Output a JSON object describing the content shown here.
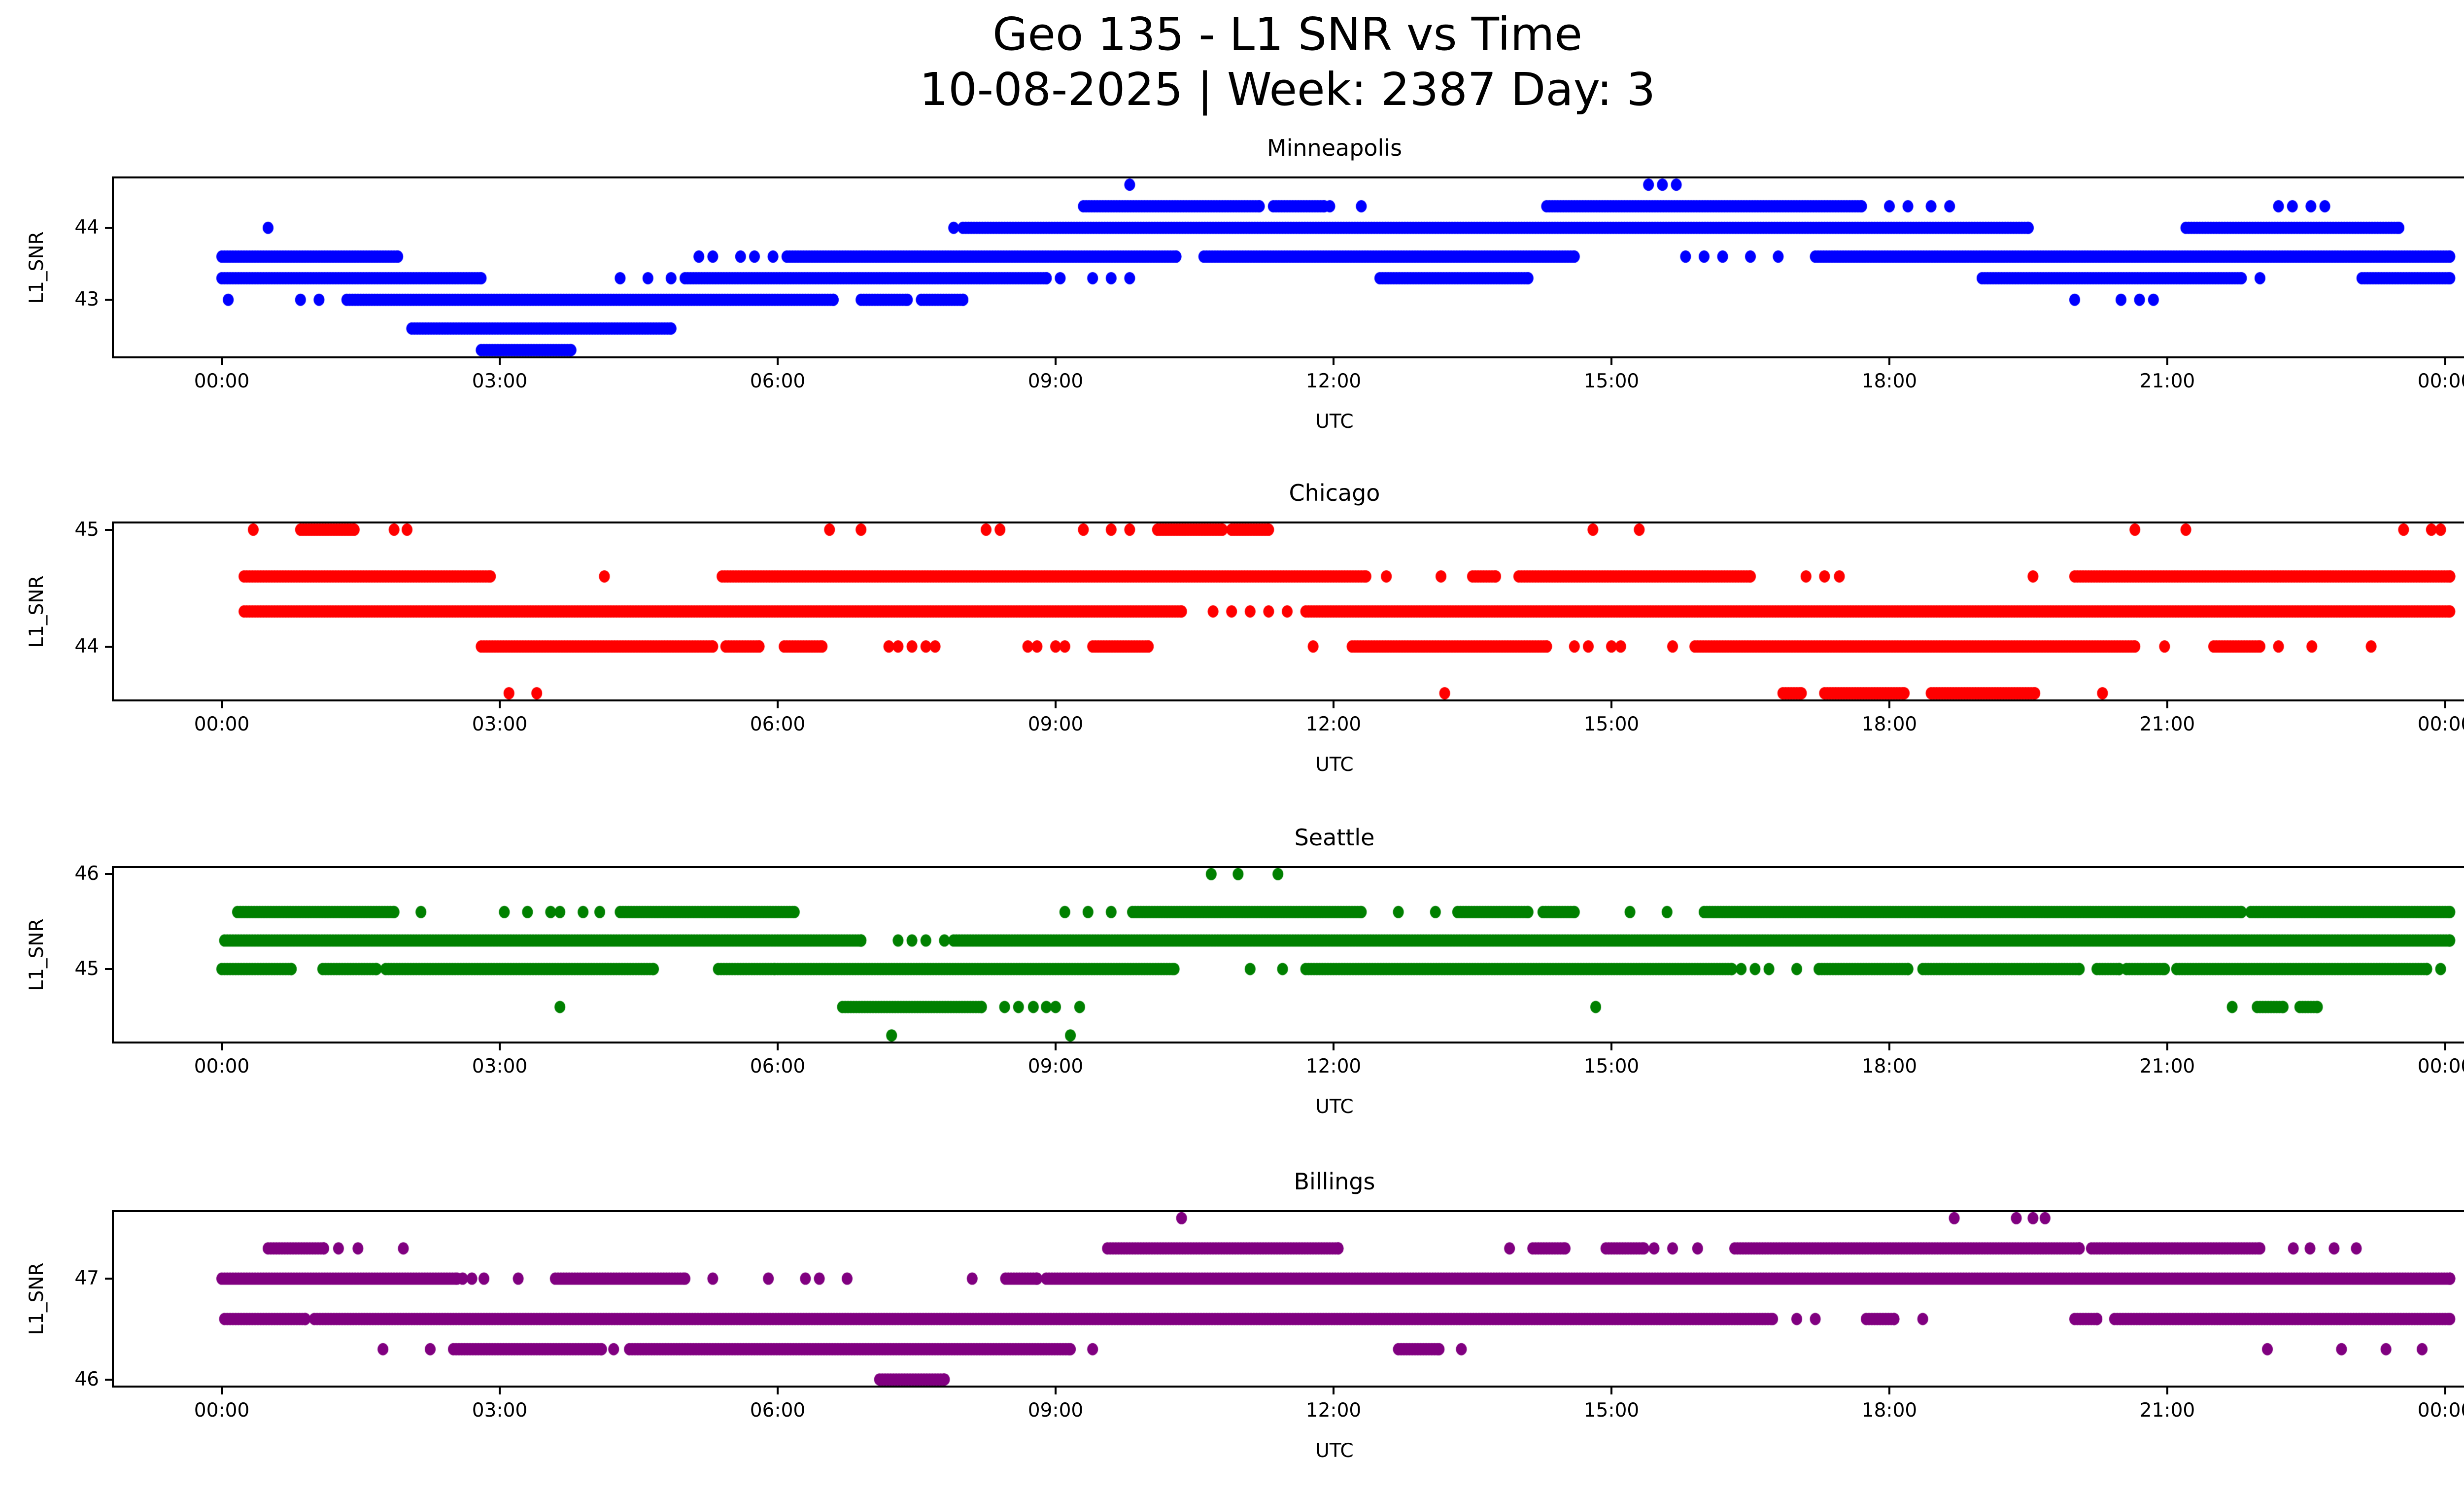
{
  "figure": {
    "title_line1": "Geo 135 - L1 SNR vs Time",
    "title_line2": "10-08-2025 | Week: 2387 Day: 3"
  },
  "xticks": [
    {
      "hour": 0,
      "label": "00:00"
    },
    {
      "hour": 3,
      "label": "03:00"
    },
    {
      "hour": 6,
      "label": "06:00"
    },
    {
      "hour": 9,
      "label": "09:00"
    },
    {
      "hour": 12,
      "label": "12:00"
    },
    {
      "hour": 15,
      "label": "15:00"
    },
    {
      "hour": 18,
      "label": "18:00"
    },
    {
      "hour": 21,
      "label": "21:00"
    },
    {
      "hour": 24,
      "label": "00:00"
    }
  ],
  "chart_data": [
    {
      "type": "scatter",
      "title": "Minneapolis",
      "xlabel": "UTC",
      "ylabel": "L1_SNR",
      "color": "#0000ff",
      "ylim": [
        42.185,
        44.715
      ],
      "yticks": [
        43,
        44
      ],
      "xlim_hours": [
        -1.19,
        25.21
      ],
      "series": [
        {
          "snr": 44.6,
          "segments": [],
          "dots": [
            9.8,
            15.4,
            15.55,
            15.7
          ]
        },
        {
          "snr": 44.3,
          "segments": [
            [
              9.3,
              11.2
            ],
            [
              11.35,
              11.9
            ],
            [
              14.3,
              17.7
            ]
          ],
          "dots": [
            11.96,
            12.3,
            18.0,
            18.2,
            18.45,
            18.65,
            22.2,
            22.35,
            22.55,
            22.7
          ]
        },
        {
          "snr": 44.0,
          "segments": [
            [
              8.0,
              19.5
            ],
            [
              21.2,
              23.5
            ]
          ],
          "dots": [
            0.5,
            7.9
          ]
        },
        {
          "snr": 43.6,
          "segments": [
            [
              0.0,
              1.9
            ],
            [
              6.1,
              10.3
            ],
            [
              10.6,
              14.6
            ],
            [
              17.2,
              24.05
            ]
          ],
          "dots": [
            5.15,
            5.3,
            5.6,
            5.75,
            5.95,
            15.8,
            16.0,
            16.2,
            16.5,
            16.8
          ]
        },
        {
          "snr": 43.3,
          "segments": [
            [
              0.0,
              2.8
            ],
            [
              5.0,
              8.9
            ],
            [
              12.5,
              14.1
            ],
            [
              19.0,
              21.8
            ],
            [
              23.1,
              24.05
            ]
          ],
          "dots": [
            4.3,
            4.6,
            4.85,
            9.05,
            9.4,
            9.6,
            9.8,
            22.0
          ]
        },
        {
          "snr": 43.0,
          "segments": [
            [
              1.35,
              6.6
            ],
            [
              6.9,
              7.4
            ],
            [
              7.55,
              8.0
            ]
          ],
          "dots": [
            0.07,
            0.85,
            1.05,
            20.0,
            20.5,
            20.7,
            20.85
          ]
        },
        {
          "snr": 42.6,
          "segments": [
            [
              2.05,
              4.85
            ]
          ],
          "dots": []
        },
        {
          "snr": 42.3,
          "segments": [
            [
              2.8,
              3.77
            ]
          ],
          "dots": []
        }
      ]
    },
    {
      "type": "scatter",
      "title": "Chicago",
      "xlabel": "UTC",
      "ylabel": "L1_SNR",
      "color": "#ff0000",
      "ylim": [
        43.53,
        45.07
      ],
      "yticks": [
        44,
        45
      ],
      "xlim_hours": [
        -1.19,
        25.21
      ],
      "series": [
        {
          "snr": 45.0,
          "segments": [
            [
              0.85,
              1.43
            ],
            [
              10.1,
              10.8
            ],
            [
              10.9,
              11.3
            ]
          ],
          "dots": [
            0.34,
            1.86,
            2.0,
            6.56,
            6.9,
            8.25,
            8.4,
            9.3,
            9.6,
            9.8,
            14.8,
            15.3,
            20.65,
            21.2,
            23.55,
            23.85,
            23.95
          ]
        },
        {
          "snr": 44.6,
          "segments": [
            [
              0.24,
              2.9
            ],
            [
              5.4,
              12.35
            ],
            [
              13.5,
              13.75
            ],
            [
              14.0,
              16.5
            ],
            [
              20.0,
              24.05
            ]
          ],
          "dots": [
            4.13,
            12.57,
            13.16,
            17.1,
            17.3,
            17.46,
            19.55
          ]
        },
        {
          "snr": 44.3,
          "segments": [
            [
              0.24,
              10.36
            ],
            [
              11.7,
              24.05
            ]
          ],
          "dots": [
            10.7,
            10.9,
            11.1,
            11.3,
            11.5
          ]
        },
        {
          "snr": 44.0,
          "segments": [
            [
              2.8,
              5.3
            ],
            [
              5.44,
              5.8
            ],
            [
              6.07,
              6.48
            ],
            [
              9.4,
              10.0
            ],
            [
              12.2,
              14.3
            ],
            [
              15.9,
              20.65
            ],
            [
              21.5,
              22.0
            ]
          ],
          "dots": [
            7.2,
            7.3,
            7.45,
            7.6,
            7.7,
            8.7,
            8.8,
            9.0,
            9.1,
            11.78,
            14.6,
            14.75,
            15.0,
            15.1,
            15.66,
            20.97,
            22.2,
            22.56,
            23.2
          ]
        },
        {
          "snr": 43.6,
          "segments": [
            [
              16.85,
              17.05
            ],
            [
              17.3,
              18.16
            ],
            [
              18.45,
              19.57
            ]
          ],
          "dots": [
            3.1,
            3.4,
            13.2,
            20.3
          ]
        }
      ]
    },
    {
      "type": "scatter",
      "title": "Seattle",
      "xlabel": "UTC",
      "ylabel": "L1_SNR",
      "color": "#008000",
      "ylim": [
        44.215,
        46.085
      ],
      "yticks": [
        45,
        46
      ],
      "xlim_hours": [
        -1.19,
        25.21
      ],
      "series": [
        {
          "snr": 46.0,
          "segments": [],
          "dots": [
            10.68,
            10.97,
            11.4
          ]
        },
        {
          "snr": 45.6,
          "segments": [
            [
              0.17,
              1.86
            ],
            [
              4.3,
              6.18
            ],
            [
              9.83,
              12.3
            ],
            [
              13.34,
              14.1
            ],
            [
              14.26,
              14.6
            ],
            [
              16.0,
              21.8
            ],
            [
              21.9,
              24.05
            ]
          ],
          "dots": [
            2.15,
            3.05,
            3.3,
            3.55,
            3.65,
            3.9,
            4.08,
            9.1,
            9.35,
            9.6,
            12.7,
            13.1,
            15.2,
            15.6
          ]
        },
        {
          "snr": 45.3,
          "segments": [
            [
              0.03,
              6.9
            ],
            [
              7.9,
              24.05
            ]
          ],
          "dots": [
            7.3,
            7.45,
            7.6,
            7.8
          ]
        },
        {
          "snr": 45.0,
          "segments": [
            [
              0.0,
              0.75
            ],
            [
              1.09,
              1.67
            ],
            [
              1.77,
              4.66
            ],
            [
              5.36,
              5.97
            ],
            [
              6.0,
              10.28
            ],
            [
              11.7,
              16.3
            ],
            [
              17.24,
              18.2
            ],
            [
              18.36,
              20.05
            ],
            [
              20.24,
              20.48
            ],
            [
              20.56,
              20.97
            ],
            [
              21.1,
              23.8
            ]
          ],
          "dots": [
            11.1,
            11.45,
            16.4,
            16.55,
            16.7,
            17.0,
            23.95
          ]
        },
        {
          "snr": 44.6,
          "segments": [
            [
              6.7,
              8.2
            ],
            [
              21.97,
              22.25
            ],
            [
              22.43,
              22.62
            ]
          ],
          "dots": [
            3.65,
            8.45,
            8.6,
            8.76,
            8.9,
            9.0,
            9.26,
            14.83,
            21.7
          ]
        },
        {
          "snr": 44.3,
          "segments": [],
          "dots": [
            7.23,
            9.16
          ]
        }
      ]
    },
    {
      "type": "scatter",
      "title": "Billings",
      "xlabel": "UTC",
      "ylabel": "L1_SNR",
      "color": "#800080",
      "ylim": [
        45.92,
        47.68
      ],
      "yticks": [
        46,
        47
      ],
      "xlim_hours": [
        -1.19,
        25.21
      ],
      "series": [
        {
          "snr": 47.6,
          "segments": [],
          "dots": [
            10.36,
            18.7,
            19.37,
            19.55,
            19.68
          ]
        },
        {
          "snr": 47.3,
          "segments": [
            [
              0.5,
              1.1
            ],
            [
              9.56,
              12.05
            ],
            [
              14.15,
              14.5
            ],
            [
              14.94,
              15.35
            ],
            [
              16.33,
              20.05
            ],
            [
              20.18,
              22.0
            ]
          ],
          "dots": [
            1.26,
            1.47,
            1.96,
            13.9,
            15.46,
            15.66,
            15.93,
            22.36,
            22.54,
            22.8,
            23.04
          ]
        },
        {
          "snr": 47.0,
          "segments": [
            [
              0.0,
              2.54
            ],
            [
              3.6,
              5.0
            ],
            [
              8.46,
              8.8
            ],
            [
              8.9,
              24.05
            ]
          ],
          "dots": [
            2.6,
            2.7,
            2.83,
            3.2,
            5.3,
            5.9,
            6.3,
            6.45,
            6.75,
            8.1
          ]
        },
        {
          "snr": 46.6,
          "segments": [
            [
              0.03,
              0.9
            ],
            [
              1.0,
              16.74
            ],
            [
              17.75,
              18.05
            ],
            [
              20.0,
              20.24
            ],
            [
              20.43,
              24.05
            ]
          ],
          "dots": [
            17.0,
            17.2,
            18.36
          ]
        },
        {
          "snr": 46.3,
          "segments": [
            [
              2.5,
              4.1
            ],
            [
              4.4,
              9.16
            ],
            [
              12.7,
              13.14
            ]
          ],
          "dots": [
            1.74,
            2.25,
            4.23,
            9.4,
            13.38,
            22.08,
            22.88,
            23.36,
            23.75
          ]
        },
        {
          "snr": 46.0,
          "segments": [
            [
              7.1,
              7.8
            ]
          ],
          "dots": []
        }
      ]
    }
  ]
}
